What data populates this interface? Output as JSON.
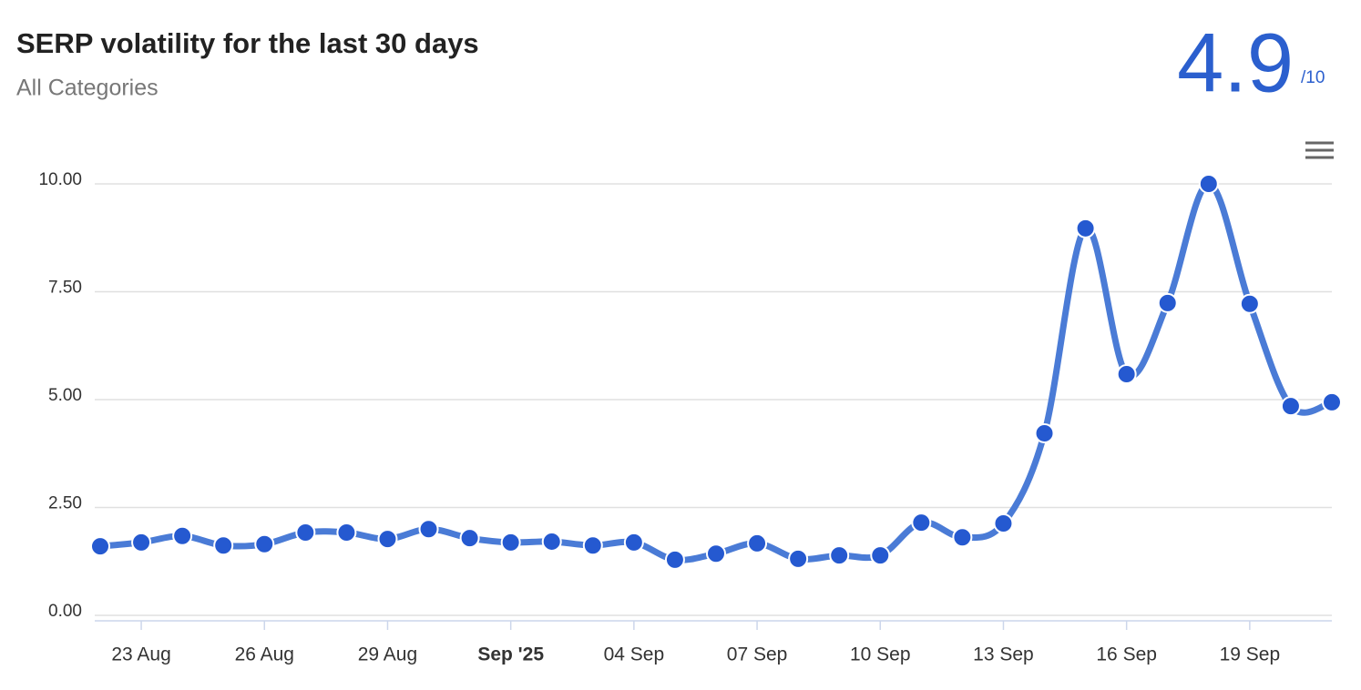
{
  "header": {
    "title": "SERP volatility for the last 30 days",
    "subtitle": "All Categories",
    "score": "4.9",
    "score_scale": "/10"
  },
  "chart_data": {
    "type": "line",
    "x": [
      "2025-08-22",
      "2025-08-23",
      "2025-08-24",
      "2025-08-25",
      "2025-08-26",
      "2025-08-27",
      "2025-08-28",
      "2025-08-29",
      "2025-08-30",
      "2025-08-31",
      "2025-09-01",
      "2025-09-02",
      "2025-09-03",
      "2025-09-04",
      "2025-09-05",
      "2025-09-06",
      "2025-09-07",
      "2025-09-08",
      "2025-09-09",
      "2025-09-10",
      "2025-09-11",
      "2025-09-12",
      "2025-09-13",
      "2025-09-14",
      "2025-09-15",
      "2025-09-16",
      "2025-09-17",
      "2025-09-18",
      "2025-09-19",
      "2025-09-20",
      "2025-09-21"
    ],
    "series": [
      {
        "color": "#4a7bd6",
        "marker_color": "#2559d0",
        "values": [
          1.6,
          1.69,
          1.84,
          1.62,
          1.65,
          1.92,
          1.92,
          1.77,
          2.0,
          1.79,
          1.69,
          1.71,
          1.62,
          1.69,
          1.29,
          1.43,
          1.67,
          1.31,
          1.39,
          1.39,
          2.15,
          1.81,
          2.13,
          4.22,
          8.97,
          5.59,
          7.24,
          10.0,
          7.22,
          4.85,
          4.94
        ]
      }
    ],
    "xlim": [
      "2025-08-22",
      "2025-09-21"
    ],
    "xticks": [
      {
        "value": "2025-08-23",
        "label": "23 Aug"
      },
      {
        "value": "2025-08-26",
        "label": "26 Aug"
      },
      {
        "value": "2025-08-29",
        "label": "29 Aug"
      },
      {
        "value": "2025-09-01",
        "label": "Sep '25"
      },
      {
        "value": "2025-09-04",
        "label": "04 Sep"
      },
      {
        "value": "2025-09-07",
        "label": "07 Sep"
      },
      {
        "value": "2025-09-10",
        "label": "10 Sep"
      },
      {
        "value": "2025-09-13",
        "label": "13 Sep"
      },
      {
        "value": "2025-09-16",
        "label": "16 Sep"
      },
      {
        "value": "2025-09-19",
        "label": "19 Sep"
      }
    ],
    "ylim": [
      0,
      10
    ],
    "yticks": [
      {
        "value": 0,
        "label": "0.00"
      },
      {
        "value": 2.5,
        "label": "2.50"
      },
      {
        "value": 5,
        "label": "5.00"
      },
      {
        "value": 7.5,
        "label": "7.50"
      },
      {
        "value": 10,
        "label": "10.00"
      }
    ],
    "grid": true
  }
}
